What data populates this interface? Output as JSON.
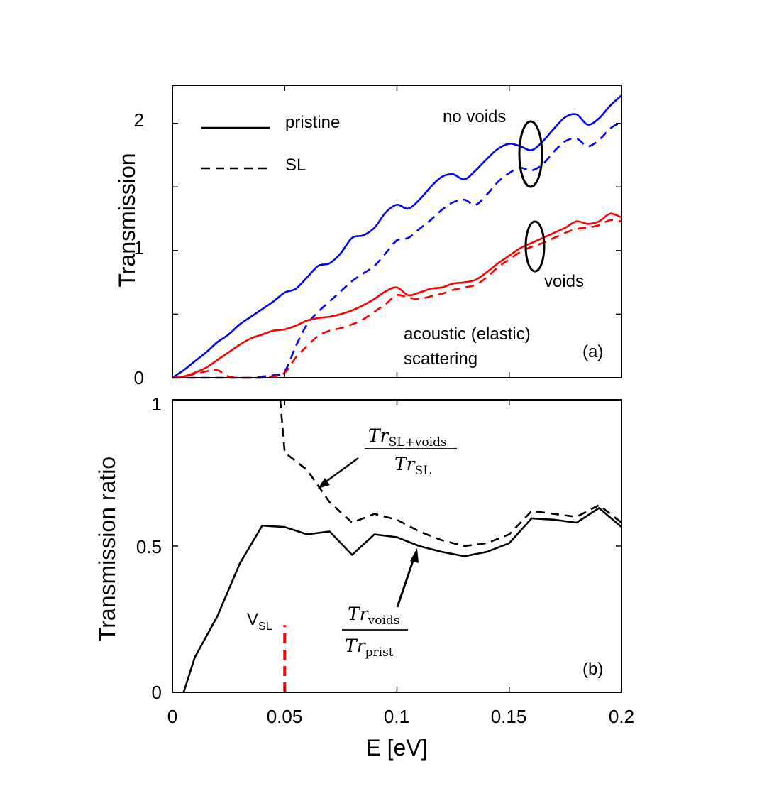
{
  "colors": {
    "no_voids": "#0000ff",
    "voids": "#ff0000",
    "ratio": "#000000",
    "vsl_marker": "#ff0000"
  },
  "chart_data": [
    {
      "panel": "(a)",
      "type": "line",
      "ylabel": "Transmission",
      "xlim": [
        0,
        0.2
      ],
      "ylim": [
        0,
        2.3
      ],
      "yticks": [
        "0",
        "1",
        "2"
      ],
      "legend": {
        "placement": "top-left",
        "entries": [
          "pristine",
          "SL"
        ]
      },
      "annotations": [
        "no voids",
        "voids",
        "acoustic (elastic)",
        "scattering",
        "(a)"
      ],
      "series": [
        {
          "color": "blue",
          "style": "solid",
          "x": [
            0,
            0.005,
            0.01,
            0.015,
            0.02,
            0.025,
            0.03,
            0.035,
            0.04,
            0.045,
            0.05,
            0.055,
            0.06,
            0.065,
            0.07,
            0.075,
            0.08,
            0.085,
            0.09,
            0.095,
            0.1,
            0.105,
            0.11,
            0.115,
            0.12,
            0.125,
            0.13,
            0.135,
            0.14,
            0.145,
            0.15,
            0.155,
            0.16,
            0.165,
            0.17,
            0.175,
            0.18,
            0.185,
            0.19,
            0.195,
            0.2
          ],
          "y": [
            0.0,
            0.06,
            0.13,
            0.2,
            0.28,
            0.34,
            0.42,
            0.48,
            0.54,
            0.6,
            0.67,
            0.7,
            0.79,
            0.88,
            0.9,
            0.98,
            1.1,
            1.12,
            1.18,
            1.3,
            1.36,
            1.33,
            1.4,
            1.5,
            1.58,
            1.6,
            1.56,
            1.63,
            1.72,
            1.8,
            1.84,
            1.82,
            1.79,
            1.86,
            1.96,
            2.05,
            2.07,
            1.99,
            2.04,
            2.14,
            2.22
          ]
        },
        {
          "color": "blue",
          "style": "dashed",
          "x": [
            0,
            0.005,
            0.01,
            0.015,
            0.02,
            0.025,
            0.03,
            0.035,
            0.04,
            0.045,
            0.05,
            0.055,
            0.06,
            0.065,
            0.07,
            0.075,
            0.08,
            0.085,
            0.09,
            0.095,
            0.1,
            0.105,
            0.11,
            0.115,
            0.12,
            0.125,
            0.13,
            0.135,
            0.14,
            0.145,
            0.15,
            0.155,
            0.16,
            0.165,
            0.17,
            0.175,
            0.18,
            0.185,
            0.19,
            0.195,
            0.2
          ],
          "y": [
            0,
            0,
            0,
            0,
            0,
            0,
            0,
            0,
            0.01,
            0.02,
            0.05,
            0.25,
            0.42,
            0.52,
            0.6,
            0.68,
            0.76,
            0.82,
            0.88,
            0.98,
            1.08,
            1.1,
            1.17,
            1.24,
            1.32,
            1.38,
            1.4,
            1.36,
            1.44,
            1.54,
            1.61,
            1.65,
            1.63,
            1.68,
            1.78,
            1.86,
            1.88,
            1.82,
            1.87,
            1.96,
            2.01
          ]
        },
        {
          "color": "red",
          "style": "solid",
          "x": [
            0,
            0.005,
            0.01,
            0.015,
            0.02,
            0.025,
            0.03,
            0.035,
            0.04,
            0.045,
            0.05,
            0.055,
            0.06,
            0.065,
            0.07,
            0.075,
            0.08,
            0.085,
            0.09,
            0.095,
            0.1,
            0.105,
            0.11,
            0.115,
            0.12,
            0.125,
            0.13,
            0.135,
            0.14,
            0.145,
            0.15,
            0.155,
            0.16,
            0.165,
            0.17,
            0.175,
            0.18,
            0.185,
            0.19,
            0.195,
            0.2
          ],
          "y": [
            0,
            0.01,
            0.04,
            0.08,
            0.14,
            0.2,
            0.26,
            0.31,
            0.34,
            0.37,
            0.38,
            0.41,
            0.45,
            0.47,
            0.48,
            0.5,
            0.53,
            0.57,
            0.62,
            0.68,
            0.71,
            0.65,
            0.67,
            0.7,
            0.71,
            0.74,
            0.75,
            0.77,
            0.83,
            0.9,
            0.96,
            1.02,
            1.06,
            1.1,
            1.14,
            1.18,
            1.23,
            1.21,
            1.23,
            1.29,
            1.26
          ]
        },
        {
          "color": "red",
          "style": "dashed",
          "x": [
            0,
            0.005,
            0.01,
            0.015,
            0.02,
            0.025,
            0.03,
            0.035,
            0.04,
            0.045,
            0.05,
            0.055,
            0.06,
            0.065,
            0.07,
            0.075,
            0.08,
            0.085,
            0.09,
            0.095,
            0.1,
            0.105,
            0.11,
            0.115,
            0.12,
            0.125,
            0.13,
            0.135,
            0.14,
            0.145,
            0.15,
            0.155,
            0.16,
            0.165,
            0.17,
            0.175,
            0.18,
            0.185,
            0.19,
            0.195,
            0.2
          ],
          "y": [
            0,
            0.01,
            0.03,
            0.05,
            0.06,
            0.01,
            0.0,
            0.0,
            0.0,
            0.01,
            0.04,
            0.16,
            0.25,
            0.33,
            0.37,
            0.39,
            0.42,
            0.46,
            0.52,
            0.58,
            0.65,
            0.63,
            0.62,
            0.64,
            0.66,
            0.69,
            0.71,
            0.73,
            0.79,
            0.87,
            0.93,
            0.99,
            1.03,
            1.06,
            1.1,
            1.14,
            1.17,
            1.18,
            1.2,
            1.24,
            1.23
          ]
        }
      ]
    },
    {
      "panel": "(b)",
      "type": "line",
      "ylabel": "Transmission ratio",
      "xlabel": "E [eV]",
      "xlim": [
        0,
        0.2
      ],
      "ylim": [
        0,
        1
      ],
      "xticks": [
        "0",
        "0.05",
        "0.1",
        "0.15",
        "0.2"
      ],
      "yticks": [
        "0",
        "0.5",
        "1"
      ],
      "annotations": [
        "(b)"
      ],
      "vsl": {
        "x": 0.05,
        "y_top": 0.23,
        "label_main": "V",
        "label_sub": "SL"
      },
      "fraction_labels": {
        "sl_voids": {
          "num": "Tr",
          "num_sub": "SL+voids",
          "den": "Tr",
          "den_sub": "SL"
        },
        "voids": {
          "num": "Tr",
          "num_sub": "voids",
          "den": "Tr",
          "den_sub": "prist"
        }
      },
      "series": [
        {
          "name": "Tr_SL+voids / Tr_SL",
          "style": "dashed",
          "x": [
            0.048,
            0.05,
            0.06,
            0.07,
            0.08,
            0.09,
            0.1,
            0.11,
            0.12,
            0.13,
            0.14,
            0.15,
            0.16,
            0.17,
            0.18,
            0.19,
            0.2
          ],
          "y": [
            1.0,
            0.82,
            0.76,
            0.65,
            0.58,
            0.61,
            0.59,
            0.55,
            0.52,
            0.5,
            0.51,
            0.54,
            0.62,
            0.61,
            0.6,
            0.64,
            0.58
          ]
        },
        {
          "name": "Tr_voids / Tr_prist",
          "style": "solid",
          "x": [
            0.005,
            0.01,
            0.02,
            0.03,
            0.04,
            0.05,
            0.06,
            0.07,
            0.08,
            0.09,
            0.1,
            0.11,
            0.12,
            0.13,
            0.14,
            0.15,
            0.16,
            0.17,
            0.18,
            0.19,
            0.2
          ],
          "y": [
            0.0,
            0.12,
            0.26,
            0.44,
            0.57,
            0.565,
            0.54,
            0.55,
            0.47,
            0.54,
            0.53,
            0.5,
            0.48,
            0.465,
            0.48,
            0.51,
            0.595,
            0.59,
            0.58,
            0.63,
            0.565
          ]
        }
      ]
    }
  ]
}
